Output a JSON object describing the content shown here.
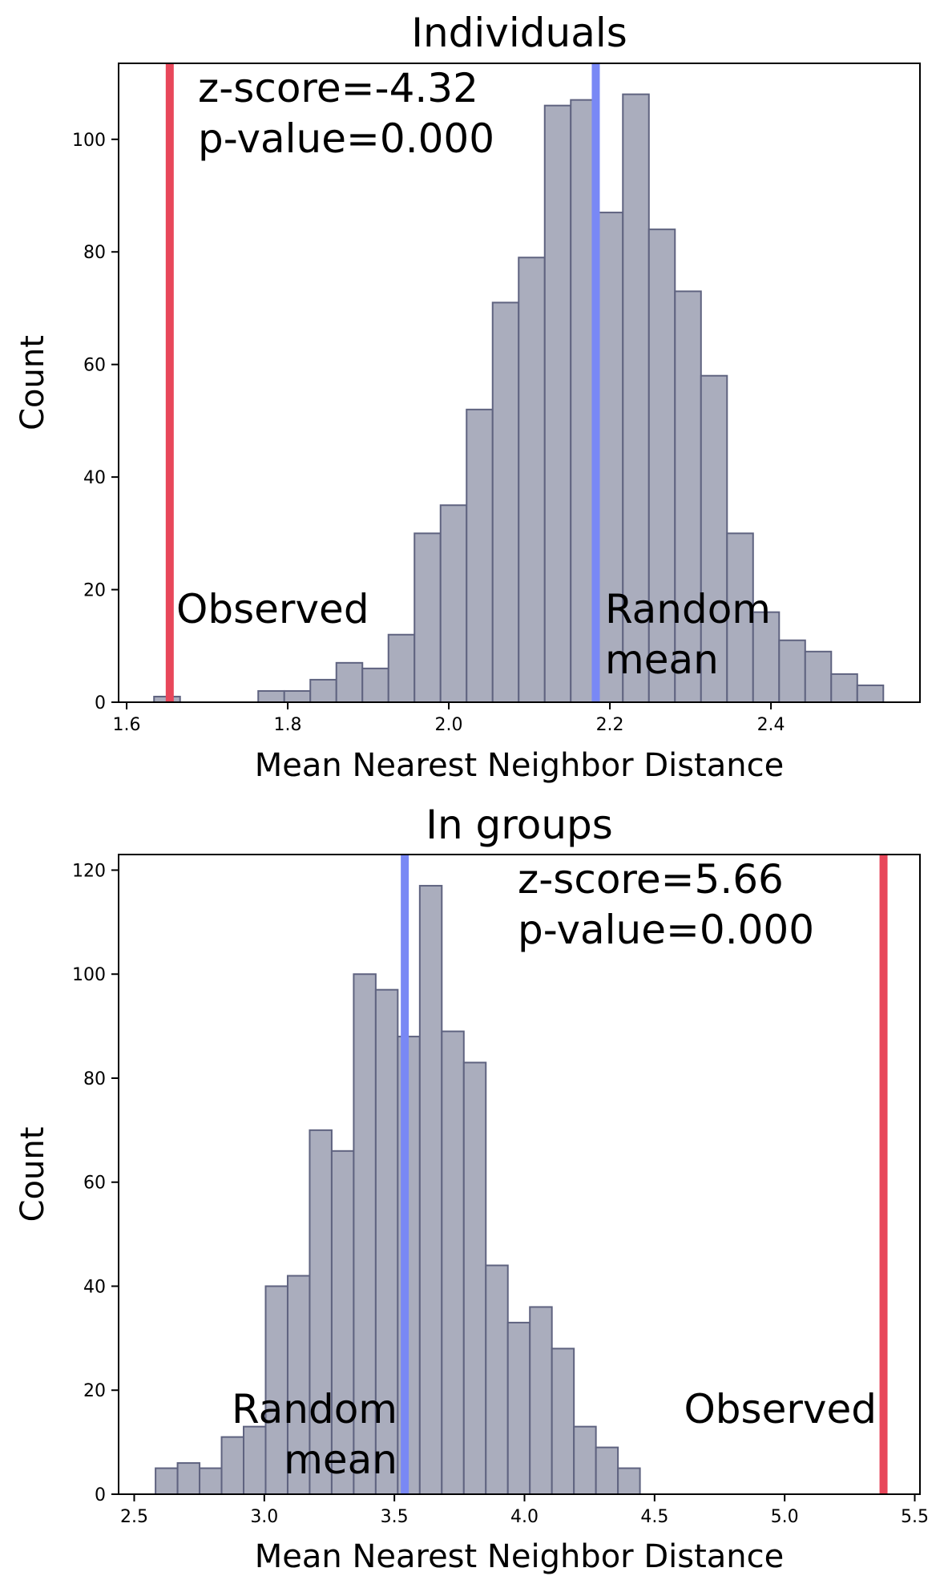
{
  "chart_data": [
    {
      "type": "bar",
      "title": "Individuals",
      "xlabel": "Mean Nearest Neighbor Distance",
      "ylabel": "Count",
      "xlim": [
        1.59,
        2.585
      ],
      "ylim": [
        0,
        113.5
      ],
      "xticks": [
        1.6,
        1.8,
        2.0,
        2.2,
        2.4
      ],
      "xtick_labels": [
        "1.6",
        "1.8",
        "2.0",
        "2.2",
        "2.4"
      ],
      "yticks": [
        0,
        20,
        40,
        60,
        80,
        100
      ],
      "ytick_labels": [
        "0",
        "20",
        "40",
        "60",
        "80",
        "100"
      ],
      "bin_start": 1.634,
      "bin_width": 0.03234,
      "values": [
        1,
        0,
        0,
        0,
        2,
        2,
        4,
        7,
        6,
        12,
        30,
        35,
        52,
        71,
        79,
        106,
        107,
        87,
        108,
        84,
        73,
        58,
        30,
        16,
        11,
        9,
        5,
        3
      ],
      "observed_value": 1.6535,
      "observed_label": "Observed",
      "random_mean_value": 2.1825,
      "random_mean_label": [
        "Random",
        "mean"
      ],
      "stats_lines": [
        "z-score=-4.32",
        "p-value=0.000"
      ],
      "colors": {
        "observed": "#e8475a",
        "random_mean": "#7988f5",
        "bar_fill": "#aaadbd",
        "bar_edge": "#5f6380"
      }
    },
    {
      "type": "bar",
      "title": "In groups",
      "xlabel": "Mean Nearest Neighbor Distance",
      "ylabel": "Count",
      "xlim": [
        2.44,
        5.52
      ],
      "ylim": [
        0,
        123
      ],
      "xticks": [
        2.5,
        3.0,
        3.5,
        4.0,
        4.5,
        5.0,
        5.5
      ],
      "xtick_labels": [
        "2.5",
        "3.0",
        "3.5",
        "4.0",
        "4.5",
        "5.0",
        "5.5"
      ],
      "yticks": [
        0,
        20,
        40,
        60,
        80,
        100,
        120
      ],
      "ytick_labels": [
        "0",
        "20",
        "40",
        "60",
        "80",
        "100",
        "120"
      ],
      "bin_start": 2.582,
      "bin_width": 0.08463,
      "values": [
        5,
        6,
        5,
        11,
        13,
        40,
        42,
        70,
        66,
        100,
        97,
        88,
        117,
        89,
        83,
        44,
        33,
        36,
        28,
        13,
        9,
        5
      ],
      "observed_value": 5.38,
      "observed_label": "Observed",
      "random_mean_value": 3.54,
      "random_mean_label": [
        "Random",
        "mean"
      ],
      "stats_lines": [
        "z-score=5.66",
        "p-value=0.000"
      ],
      "colors": {
        "observed": "#e8475a",
        "random_mean": "#7988f5",
        "bar_fill": "#aaadbd",
        "bar_edge": "#5f6380"
      }
    }
  ]
}
